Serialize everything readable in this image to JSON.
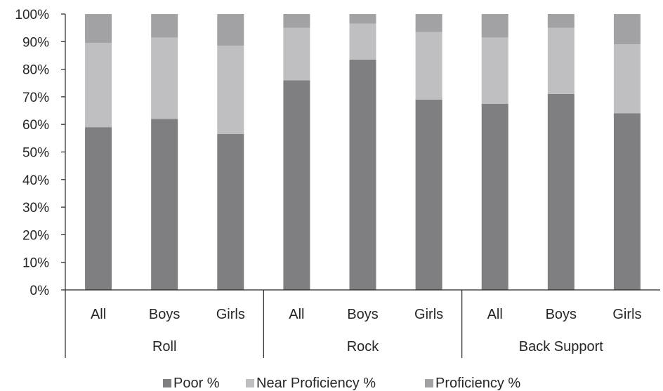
{
  "chart_data": {
    "type": "bar",
    "stacked": true,
    "title": "",
    "xlabel": "",
    "ylabel": "",
    "ylim": [
      0,
      100
    ],
    "y_ticks": [
      "0%",
      "10%",
      "20%",
      "30%",
      "40%",
      "50%",
      "60%",
      "70%",
      "80%",
      "90%",
      "100%"
    ],
    "groups": [
      {
        "label": "Roll",
        "categories": [
          "All",
          "Boys",
          "Girls"
        ]
      },
      {
        "label": "Rock",
        "categories": [
          "All",
          "Boys",
          "Girls"
        ]
      },
      {
        "label": "Back Support",
        "categories": [
          "All",
          "Boys",
          "Girls"
        ]
      }
    ],
    "series": [
      {
        "name": "Poor %",
        "color": "#7f7f81",
        "values": [
          59,
          62,
          56.5,
          76,
          83.5,
          69,
          67.5,
          71,
          64
        ]
      },
      {
        "name": "Near Proficiency %",
        "color": "#bfbfc1",
        "values": [
          30.5,
          29.5,
          32,
          19,
          13,
          24.5,
          24,
          24,
          25
        ]
      },
      {
        "name": "Proficiency %",
        "color": "#a2a2a4",
        "values": [
          10.5,
          8.5,
          11.5,
          5,
          3.5,
          6.5,
          8.5,
          5,
          11
        ]
      }
    ],
    "legend_position": "bottom",
    "grid": false
  }
}
